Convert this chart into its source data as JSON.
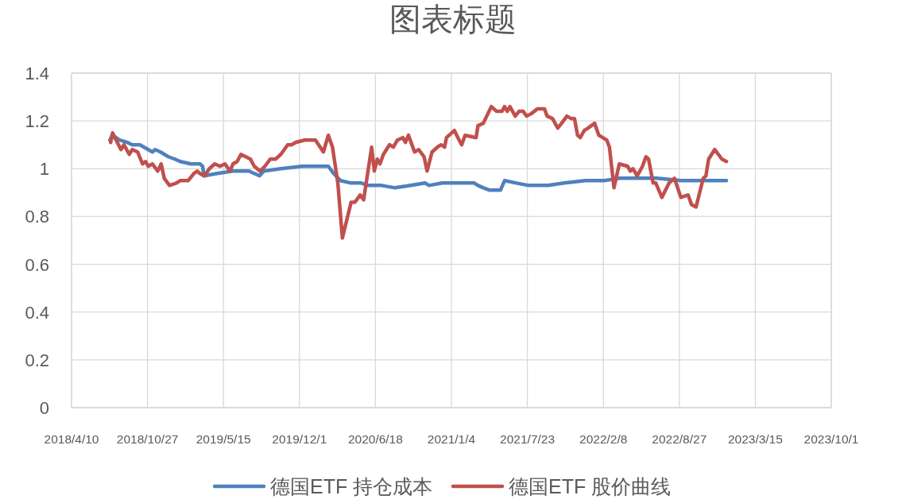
{
  "chart_data": {
    "type": "line",
    "title": "图表标题",
    "xlim": [
      "2018-04-10",
      "2023-10-01"
    ],
    "xticks": [
      {
        "value": "2018-04-10",
        "label": "2018/4/10"
      },
      {
        "value": "2018-10-27",
        "label": "2018/10/27"
      },
      {
        "value": "2019-05-15",
        "label": "2019/5/15"
      },
      {
        "value": "2019-12-01",
        "label": "2019/12/1"
      },
      {
        "value": "2020-06-18",
        "label": "2020/6/18"
      },
      {
        "value": "2021-01-04",
        "label": "2021/1/4"
      },
      {
        "value": "2021-07-23",
        "label": "2021/7/23"
      },
      {
        "value": "2022-02-08",
        "label": "2022/2/8"
      },
      {
        "value": "2022-08-27",
        "label": "2022/8/27"
      },
      {
        "value": "2023-03-15",
        "label": "2023/3/15"
      },
      {
        "value": "2023-10-01",
        "label": "2023/10/1"
      }
    ],
    "ylim": [
      0,
      1.4
    ],
    "yticks": [
      0,
      0.2,
      0.4,
      0.6,
      0.8,
      1,
      1.2,
      1.4
    ],
    "grid": true,
    "legend": "bottom",
    "series": [
      {
        "name": "德国ETF 持仓成本",
        "color": "#4f81bd",
        "x": [
          "2018-07-20",
          "2018-07-27",
          "2018-08-14",
          "2018-09-04",
          "2018-09-17",
          "2018-10-07",
          "2018-11-09",
          "2018-11-16",
          "2018-11-30",
          "2018-12-21",
          "2019-01-07",
          "2019-01-21",
          "2019-02-18",
          "2019-03-14",
          "2019-03-21",
          "2019-03-25",
          "2019-04-29",
          "2019-06-09",
          "2019-07-21",
          "2019-08-04",
          "2019-08-18",
          "2019-08-29",
          "2019-10-13",
          "2019-12-08",
          "2020-02-02",
          "2020-02-15",
          "2020-02-29",
          "2020-03-18",
          "2020-04-15",
          "2020-05-12",
          "2020-05-30",
          "2020-07-04",
          "2020-08-08",
          "2020-09-19",
          "2020-10-27",
          "2020-11-06",
          "2020-12-11",
          "2021-01-08",
          "2021-03-05",
          "2021-03-15",
          "2021-03-29",
          "2021-04-15",
          "2021-05-13",
          "2021-05-24",
          "2021-06-24",
          "2021-07-26",
          "2021-09-16",
          "2021-10-28",
          "2021-12-23",
          "2022-02-10",
          "2022-03-23",
          "2022-05-25",
          "2022-06-29",
          "2022-08-31",
          "2022-11-02",
          "2022-11-23",
          "2022-12-29"
        ],
        "values": [
          1.12,
          1.14,
          1.12,
          1.11,
          1.1,
          1.1,
          1.07,
          1.08,
          1.07,
          1.05,
          1.04,
          1.03,
          1.02,
          1.02,
          1.01,
          0.97,
          0.98,
          0.99,
          0.99,
          0.98,
          0.97,
          0.99,
          1.0,
          1.01,
          1.01,
          1.01,
          0.98,
          0.95,
          0.94,
          0.94,
          0.93,
          0.93,
          0.92,
          0.93,
          0.94,
          0.93,
          0.94,
          0.94,
          0.94,
          0.93,
          0.92,
          0.91,
          0.91,
          0.95,
          0.94,
          0.93,
          0.93,
          0.94,
          0.95,
          0.95,
          0.96,
          0.96,
          0.96,
          0.95,
          0.95,
          0.95,
          0.95
        ]
      },
      {
        "name": "德国ETF 股价曲线",
        "color": "#c0504d",
        "x": [
          "2018-07-22",
          "2018-07-27",
          "2018-08-18",
          "2018-08-26",
          "2018-09-09",
          "2018-09-17",
          "2018-10-01",
          "2018-10-14",
          "2018-10-22",
          "2018-10-29",
          "2018-11-09",
          "2018-11-23",
          "2018-12-02",
          "2018-12-10",
          "2018-12-24",
          "2019-01-11",
          "2019-01-21",
          "2019-02-11",
          "2019-02-26",
          "2019-03-07",
          "2019-03-14",
          "2019-03-25",
          "2019-04-08",
          "2019-04-22",
          "2019-05-06",
          "2019-05-19",
          "2019-06-01",
          "2019-06-09",
          "2019-06-20",
          "2019-06-30",
          "2019-07-25",
          "2019-08-04",
          "2019-08-19",
          "2019-09-01",
          "2019-09-15",
          "2019-09-29",
          "2019-10-13",
          "2019-10-31",
          "2019-11-10",
          "2019-11-21",
          "2019-12-15",
          "2019-12-29",
          "2020-01-12",
          "2020-02-02",
          "2020-02-15",
          "2020-02-26",
          "2020-03-11",
          "2020-03-23",
          "2020-04-15",
          "2020-04-25",
          "2020-05-09",
          "2020-05-18",
          "2020-06-08",
          "2020-06-15",
          "2020-06-23",
          "2020-06-30",
          "2020-07-09",
          "2020-07-25",
          "2020-08-04",
          "2020-08-15",
          "2020-08-29",
          "2020-09-05",
          "2020-09-13",
          "2020-09-29",
          "2020-10-10",
          "2020-10-24",
          "2020-11-01",
          "2020-11-14",
          "2020-11-28",
          "2020-12-08",
          "2020-12-17",
          "2020-12-22",
          "2021-01-12",
          "2021-01-21",
          "2021-01-31",
          "2021-02-09",
          "2021-03-10",
          "2021-03-15",
          "2021-03-29",
          "2021-04-19",
          "2021-05-03",
          "2021-05-17",
          "2021-05-24",
          "2021-05-31",
          "2021-06-07",
          "2021-06-21",
          "2021-07-01",
          "2021-07-12",
          "2021-07-21",
          "2021-08-02",
          "2021-08-18",
          "2021-08-28",
          "2021-09-06",
          "2021-09-13",
          "2021-09-27",
          "2021-10-11",
          "2021-10-21",
          "2021-11-04",
          "2021-11-15",
          "2021-11-24",
          "2021-12-02",
          "2021-12-09",
          "2021-12-20",
          "2021-12-30",
          "2022-01-16",
          "2022-01-27",
          "2022-02-17",
          "2022-02-24",
          "2022-03-08",
          "2022-03-22",
          "2022-04-13",
          "2022-04-20",
          "2022-04-27",
          "2022-05-08",
          "2022-05-22",
          "2022-05-31",
          "2022-06-07",
          "2022-06-19",
          "2022-06-26",
          "2022-07-12",
          "2022-07-31",
          "2022-08-14",
          "2022-08-31",
          "2022-09-19",
          "2022-09-28",
          "2022-10-10",
          "2022-10-29",
          "2022-11-05",
          "2022-11-12",
          "2022-11-28",
          "2022-12-17",
          "2022-12-29"
        ],
        "values": [
          1.11,
          1.15,
          1.08,
          1.1,
          1.06,
          1.08,
          1.07,
          1.02,
          1.03,
          1.01,
          1.02,
          0.99,
          1.02,
          0.96,
          0.93,
          0.94,
          0.95,
          0.95,
          0.98,
          0.99,
          0.98,
          0.97,
          1.0,
          1.02,
          1.01,
          1.02,
          0.99,
          1.02,
          1.03,
          1.06,
          1.04,
          1.01,
          0.99,
          1.01,
          1.04,
          1.04,
          1.06,
          1.1,
          1.1,
          1.11,
          1.12,
          1.12,
          1.12,
          1.07,
          1.14,
          1.09,
          0.94,
          0.71,
          0.86,
          0.86,
          0.89,
          0.87,
          1.09,
          0.99,
          1.04,
          1.02,
          1.06,
          1.1,
          1.09,
          1.12,
          1.13,
          1.11,
          1.14,
          1.07,
          1.08,
          1.05,
          0.99,
          1.07,
          1.09,
          1.1,
          1.09,
          1.13,
          1.16,
          1.13,
          1.1,
          1.14,
          1.13,
          1.18,
          1.19,
          1.26,
          1.24,
          1.24,
          1.26,
          1.24,
          1.26,
          1.22,
          1.24,
          1.24,
          1.22,
          1.23,
          1.25,
          1.25,
          1.25,
          1.22,
          1.21,
          1.17,
          1.19,
          1.22,
          1.21,
          1.21,
          1.14,
          1.13,
          1.16,
          1.17,
          1.19,
          1.14,
          1.12,
          1.09,
          0.92,
          1.02,
          1.01,
          0.99,
          1.0,
          0.97,
          1.01,
          1.05,
          1.04,
          0.94,
          0.94,
          0.88,
          0.94,
          0.96,
          0.88,
          0.89,
          0.85,
          0.84,
          0.96,
          0.97,
          1.04,
          1.08,
          1.04,
          1.03
        ]
      }
    ]
  }
}
